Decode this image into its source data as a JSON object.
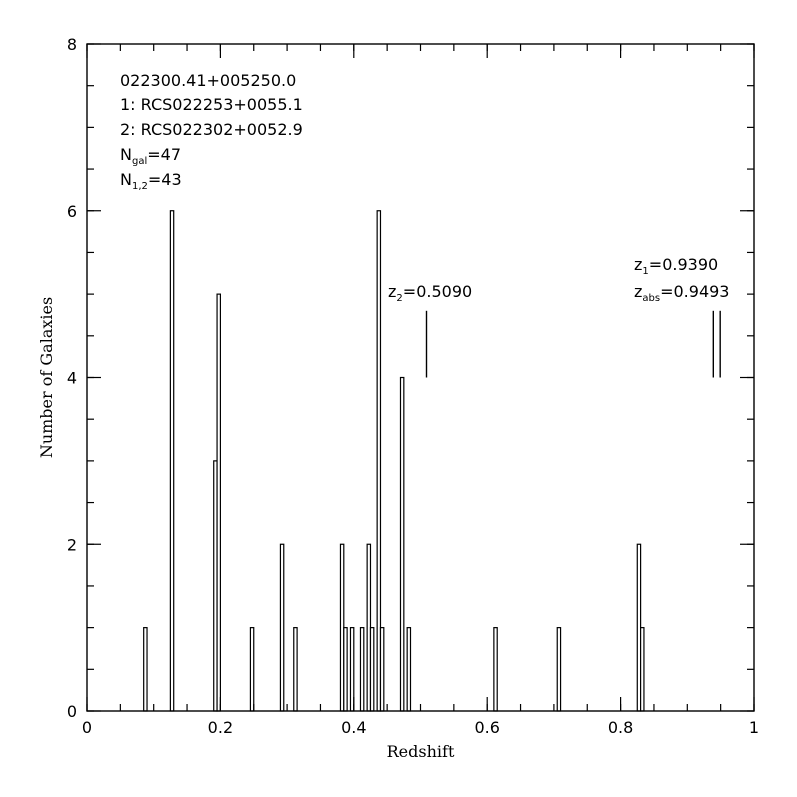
{
  "chart_data": {
    "type": "bar",
    "xlabel": "Redshift",
    "ylabel": "Number of Galaxies",
    "xlim": [
      0,
      1
    ],
    "ylim": [
      0,
      8
    ],
    "bin_width": 0.01,
    "x_ticks": [
      {
        "value": 0,
        "label": "0"
      },
      {
        "value": 0.2,
        "label": "0.2"
      },
      {
        "value": 0.4,
        "label": "0.4"
      },
      {
        "value": 0.6,
        "label": "0.6"
      },
      {
        "value": 0.8,
        "label": "0.8"
      },
      {
        "value": 1,
        "label": "1"
      }
    ],
    "y_ticks": [
      {
        "value": 0,
        "label": "0"
      },
      {
        "value": 2,
        "label": "2"
      },
      {
        "value": 4,
        "label": "4"
      },
      {
        "value": 6,
        "label": "6"
      },
      {
        "value": 8,
        "label": "8"
      }
    ],
    "x_minor_step": 0.05,
    "y_minor_step": 0.5,
    "bins": [
      {
        "x": 0.085,
        "count": 1
      },
      {
        "x": 0.125,
        "count": 6
      },
      {
        "x": 0.19,
        "count": 3
      },
      {
        "x": 0.195,
        "count": 5
      },
      {
        "x": 0.245,
        "count": 1
      },
      {
        "x": 0.29,
        "count": 2
      },
      {
        "x": 0.31,
        "count": 1
      },
      {
        "x": 0.38,
        "count": 2
      },
      {
        "x": 0.385,
        "count": 1
      },
      {
        "x": 0.395,
        "count": 1
      },
      {
        "x": 0.41,
        "count": 1
      },
      {
        "x": 0.42,
        "count": 2
      },
      {
        "x": 0.425,
        "count": 1
      },
      {
        "x": 0.435,
        "count": 6
      },
      {
        "x": 0.44,
        "count": 1
      },
      {
        "x": 0.47,
        "count": 4
      },
      {
        "x": 0.48,
        "count": 1
      },
      {
        "x": 0.61,
        "count": 1
      },
      {
        "x": 0.705,
        "count": 1
      },
      {
        "x": 0.825,
        "count": 2
      },
      {
        "x": 0.83,
        "count": 1
      }
    ],
    "redshift_markers": [
      {
        "z": 0.509,
        "y_from": 4.0,
        "y_to": 4.8
      },
      {
        "z": 0.939,
        "y_from": 4.0,
        "y_to": 4.8
      },
      {
        "z": 0.9493,
        "y_from": 4.0,
        "y_to": 4.8
      }
    ],
    "info": {
      "field": "022300.41+005250.0",
      "cluster1": "1:  RCS022253+0055.1",
      "cluster2": "2:  RCS022302+0052.9",
      "ngal_N": "N",
      "ngal_sub": "gal",
      "ngal_val": "=47",
      "n12_N": "N",
      "n12_sub": "1,2",
      "n12_val": "=43"
    },
    "labels": {
      "z2_z": "z",
      "z2_sub": "2",
      "z2_val": "=0.5090",
      "z1_z": "z",
      "z1_sub": "1",
      "z1_val": "=0.9390",
      "zabs_z": "z",
      "zabs_sub": "abs",
      "zabs_val": "=0.9493"
    }
  }
}
